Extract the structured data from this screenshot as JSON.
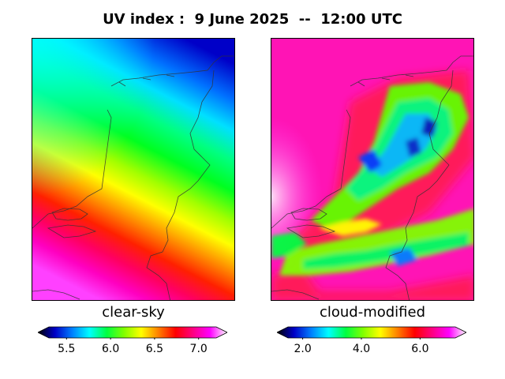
{
  "title": "UV index :  9 June 2025  --  12:00 UTC",
  "panels": {
    "left": {
      "subtitle": "clear-sky"
    },
    "right": {
      "subtitle": "cloud-modified"
    }
  },
  "colorbars": {
    "left": {
      "range": [
        5.3,
        7.2
      ],
      "ticks": [
        "5.5",
        "6.0",
        "6.5",
        "7.0"
      ],
      "tick_values": [
        5.5,
        6.0,
        6.5,
        7.0
      ]
    },
    "right": {
      "range": [
        1.5,
        7.2
      ],
      "ticks": [
        "2.0",
        "4.0",
        "6.0"
      ],
      "tick_values": [
        2.0,
        4.0,
        6.0
      ]
    }
  },
  "colors": {
    "scale": [
      "#000000",
      "#0000c8",
      "#0080ff",
      "#00ffff",
      "#00ff40",
      "#80ff00",
      "#ffff00",
      "#ff8000",
      "#ff0000",
      "#ff0080",
      "#ff00ff",
      "#ffffff"
    ]
  }
}
